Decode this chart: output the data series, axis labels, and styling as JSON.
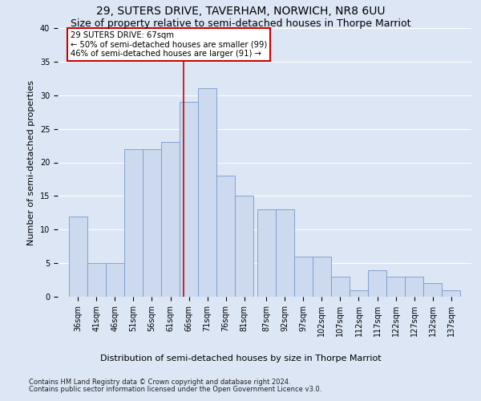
{
  "title": "29, SUTERS DRIVE, TAVERHAM, NORWICH, NR8 6UU",
  "subtitle": "Size of property relative to semi-detached houses in Thorpe Marriot",
  "xlabel_bottom": "Distribution of semi-detached houses by size in Thorpe Marriot",
  "ylabel": "Number of semi-detached properties",
  "footer1": "Contains HM Land Registry data © Crown copyright and database right 2024.",
  "footer2": "Contains public sector information licensed under the Open Government Licence v3.0.",
  "annotation_line1": "29 SUTERS DRIVE: 67sqm",
  "annotation_line2": "← 50% of semi-detached houses are smaller (99)",
  "annotation_line3": "46% of semi-detached houses are larger (91) →",
  "property_value": 67,
  "bar_color": "#ccd9ee",
  "bar_edge_color": "#7799cc",
  "vline_color": "#cc0000",
  "annotation_box_color": "#cc0000",
  "background_color": "#dce6f5",
  "fig_background": "#dce6f5",
  "categories": [
    "36sqm",
    "41sqm",
    "46sqm",
    "51sqm",
    "56sqm",
    "61sqm",
    "66sqm",
    "71sqm",
    "76sqm",
    "81sqm",
    "87sqm",
    "92sqm",
    "97sqm",
    "102sqm",
    "107sqm",
    "112sqm",
    "117sqm",
    "122sqm",
    "127sqm",
    "132sqm",
    "137sqm"
  ],
  "bin_starts": [
    36,
    41,
    46,
    51,
    56,
    61,
    66,
    71,
    76,
    81,
    87,
    92,
    97,
    102,
    107,
    112,
    117,
    122,
    127,
    132,
    137
  ],
  "values": [
    12,
    5,
    5,
    22,
    22,
    23,
    29,
    31,
    18,
    15,
    13,
    13,
    6,
    6,
    3,
    1,
    4,
    3,
    3,
    2,
    1
  ],
  "ylim": [
    0,
    40
  ],
  "yticks": [
    0,
    5,
    10,
    15,
    20,
    25,
    30,
    35,
    40
  ],
  "grid_color": "#ffffff",
  "title_fontsize": 10,
  "subtitle_fontsize": 9,
  "ylabel_fontsize": 8,
  "tick_fontsize": 7,
  "footer_fontsize": 6,
  "xlabel_bottom_fontsize": 8
}
